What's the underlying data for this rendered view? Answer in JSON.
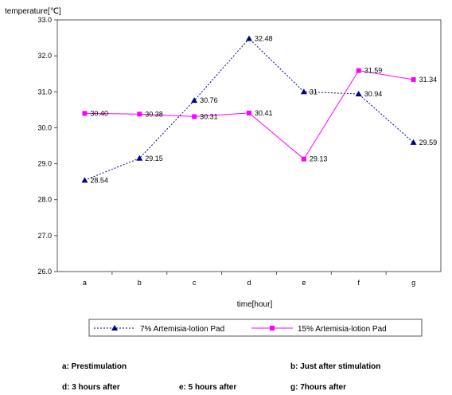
{
  "chart_data": {
    "type": "line",
    "ylabel": "temperature[℃]",
    "xlabel": "time[hour]",
    "categories": [
      "a",
      "b",
      "c",
      "d",
      "e",
      "f",
      "g"
    ],
    "ylim": [
      26.0,
      33.0
    ],
    "yticks": [
      "33.0",
      "32.0",
      "31.0",
      "30.0",
      "29.0",
      "28.0",
      "27.0",
      "26.0"
    ],
    "grid": false,
    "legend": "bottom",
    "series": [
      {
        "name": "7% Artemisia-lotion Pad",
        "color": "#00008b",
        "style": "dotted",
        "marker": "triangle",
        "values": [
          28.54,
          29.15,
          30.76,
          32.48,
          31.0,
          30.94,
          29.59
        ],
        "labels": [
          "28.54",
          "29.15",
          "30.76",
          "32.48",
          "31",
          "30.94",
          "29.59"
        ]
      },
      {
        "name": "15% Artemisia-lotion Pad",
        "color": "#ff00ff",
        "style": "solid",
        "marker": "square",
        "values": [
          30.4,
          30.38,
          30.31,
          30.41,
          29.13,
          31.59,
          31.34
        ],
        "labels": [
          "30.40",
          "30.38",
          "30.31",
          "30.41",
          "29.13",
          "31.59",
          "31.34"
        ]
      }
    ]
  },
  "notes": {
    "a": "a: Prestimulation",
    "b": "b: Just after stimulation",
    "d": "d: 3 hours after",
    "e": "e: 5 hours after",
    "g": "g: 7hours after"
  }
}
